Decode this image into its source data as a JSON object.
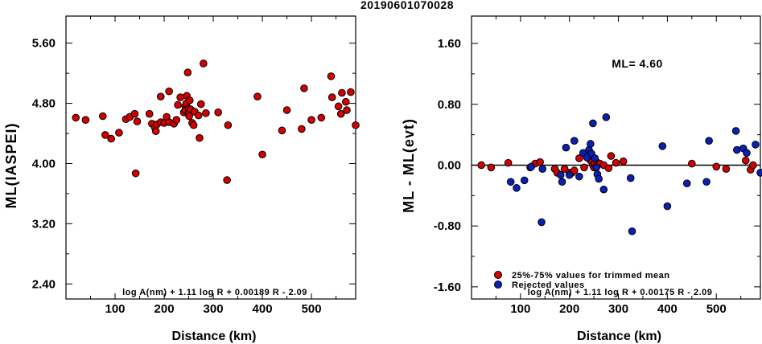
{
  "title": "20190601070028",
  "colors": {
    "red": "#d40000",
    "blue": "#0a1fb4",
    "axis": "#000000"
  },
  "chart_data": [
    {
      "type": "scatter",
      "title": "20190601070028",
      "xlabel": "Distance (km)",
      "ylabel": "ML(IASPEI)",
      "xlim": [
        0,
        590
      ],
      "ylim": [
        2.2,
        5.96
      ],
      "x_ticks": [
        100,
        200,
        300,
        400,
        500
      ],
      "y_ticks": [
        2.4,
        3.2,
        4.0,
        4.8,
        5.6
      ],
      "y_tick_labels": [
        "2.40",
        "3.20",
        "4.00",
        "4.80",
        "5.60"
      ],
      "formula": "log A(nm) + 1.11 log R + 0.00189 R - 2.09",
      "series": [
        {
          "color": "red",
          "points": [
            [
              20,
              4.61
            ],
            [
              40,
              4.58
            ],
            [
              75,
              4.63
            ],
            [
              80,
              4.38
            ],
            [
              92,
              4.33
            ],
            [
              108,
              4.41
            ],
            [
              122,
              4.59
            ],
            [
              130,
              4.62
            ],
            [
              140,
              4.66
            ],
            [
              142,
              3.87
            ],
            [
              145,
              4.56
            ],
            [
              170,
              4.66
            ],
            [
              175,
              4.53
            ],
            [
              181,
              4.48
            ],
            [
              183,
              4.43
            ],
            [
              185,
              4.52
            ],
            [
              193,
              4.55
            ],
            [
              193,
              4.89
            ],
            [
              200,
              4.54
            ],
            [
              205,
              4.62
            ],
            [
              210,
              4.55
            ],
            [
              210,
              4.96
            ],
            [
              220,
              4.53
            ],
            [
              225,
              4.58
            ],
            [
              228,
              4.78
            ],
            [
              233,
              4.88
            ],
            [
              240,
              4.68
            ],
            [
              243,
              4.76
            ],
            [
              243,
              4.71
            ],
            [
              245,
              4.8
            ],
            [
              246,
              4.9
            ],
            [
              248,
              5.21
            ],
            [
              250,
              4.73
            ],
            [
              250,
              4.67
            ],
            [
              251,
              4.63
            ],
            [
              252,
              4.84
            ],
            [
              254,
              4.72
            ],
            [
              257,
              4.54
            ],
            [
              260,
              4.51
            ],
            [
              262,
              4.69
            ],
            [
              270,
              4.64
            ],
            [
              272,
              4.34
            ],
            [
              275,
              4.79
            ],
            [
              280,
              5.33
            ],
            [
              285,
              4.67
            ],
            [
              310,
              4.68
            ],
            [
              330,
              4.51
            ],
            [
              328,
              3.78
            ],
            [
              390,
              4.89
            ],
            [
              400,
              4.12
            ],
            [
              440,
              4.44
            ],
            [
              450,
              4.71
            ],
            [
              480,
              4.46
            ],
            [
              485,
              5.0
            ],
            [
              500,
              4.58
            ],
            [
              520,
              4.61
            ],
            [
              540,
              5.16
            ],
            [
              542,
              4.88
            ],
            [
              555,
              4.76
            ],
            [
              560,
              4.66
            ],
            [
              562,
              4.94
            ],
            [
              570,
              4.82
            ],
            [
              572,
              4.71
            ],
            [
              580,
              4.95
            ],
            [
              590,
              4.51
            ]
          ]
        }
      ]
    },
    {
      "type": "scatter",
      "xlabel": "Distance (km)",
      "ylabel": "ML - ML(evt)",
      "xlim": [
        0,
        590
      ],
      "ylim": [
        -1.76,
        1.96
      ],
      "x_ticks": [
        100,
        200,
        300,
        400,
        500
      ],
      "y_ticks": [
        -1.6,
        -0.8,
        0.0,
        0.8,
        1.6
      ],
      "y_tick_labels": [
        "-1.60",
        "-0.80",
        "0.00",
        "0.80",
        "1.60"
      ],
      "reference_line": 0.0,
      "annotation": "ML= 4.60",
      "formula": "log A(nm) + 1.11 log R + 0.00175 R - 2.09",
      "legend": {
        "placement": "bottom-left",
        "entries": [
          {
            "label": "25%-75% values for trimmed mean",
            "color": "red"
          },
          {
            "label": "Rejected values",
            "color": "blue"
          }
        ]
      },
      "series": [
        {
          "name": "25%-75% values for trimmed mean",
          "color": "red",
          "points": [
            [
              20,
              0.0
            ],
            [
              40,
              -0.03
            ],
            [
              75,
              0.03
            ],
            [
              120,
              -0.03
            ],
            [
              130,
              0.02
            ],
            [
              140,
              0.04
            ],
            [
              170,
              -0.05
            ],
            [
              175,
              -0.1
            ],
            [
              190,
              -0.05
            ],
            [
              200,
              -0.1
            ],
            [
              205,
              -0.1
            ],
            [
              210,
              -0.07
            ],
            [
              220,
              0.09
            ],
            [
              230,
              -0.03
            ],
            [
              242,
              0.07
            ],
            [
              246,
              0.04
            ],
            [
              248,
              0.0
            ],
            [
              250,
              -0.03
            ],
            [
              252,
              0.02
            ],
            [
              255,
              -0.02
            ],
            [
              258,
              0.03
            ],
            [
              262,
              0.02
            ],
            [
              270,
              0.0
            ],
            [
              280,
              -0.04
            ],
            [
              285,
              0.12
            ],
            [
              295,
              0.03
            ],
            [
              310,
              0.05
            ],
            [
              450,
              0.02
            ],
            [
              500,
              -0.02
            ],
            [
              520,
              -0.05
            ],
            [
              560,
              0.06
            ],
            [
              570,
              -0.06
            ],
            [
              575,
              0.0
            ]
          ]
        },
        {
          "name": "Rejected values",
          "color": "blue",
          "points": [
            [
              80,
              -0.22
            ],
            [
              92,
              -0.3
            ],
            [
              108,
              -0.2
            ],
            [
              122,
              -0.02
            ],
            [
              143,
              -0.75
            ],
            [
              145,
              -0.05
            ],
            [
              182,
              -0.13
            ],
            [
              185,
              -0.22
            ],
            [
              193,
              0.23
            ],
            [
              200,
              -0.13
            ],
            [
              210,
              0.32
            ],
            [
              220,
              -0.15
            ],
            [
              228,
              0.16
            ],
            [
              236,
              0.1
            ],
            [
              240,
              0.2
            ],
            [
              243,
              0.28
            ],
            [
              245,
              0.15
            ],
            [
              248,
              0.55
            ],
            [
              252,
              0.09
            ],
            [
              255,
              -0.03
            ],
            [
              257,
              -0.12
            ],
            [
              260,
              -0.18
            ],
            [
              270,
              -0.32
            ],
            [
              275,
              0.63
            ],
            [
              325,
              -0.17
            ],
            [
              328,
              -0.87
            ],
            [
              390,
              0.25
            ],
            [
              400,
              -0.54
            ],
            [
              440,
              -0.24
            ],
            [
              480,
              -0.22
            ],
            [
              485,
              0.32
            ],
            [
              540,
              0.45
            ],
            [
              542,
              0.2
            ],
            [
              555,
              0.22
            ],
            [
              562,
              0.16
            ],
            [
              580,
              0.27
            ],
            [
              590,
              -0.1
            ]
          ]
        }
      ]
    }
  ]
}
